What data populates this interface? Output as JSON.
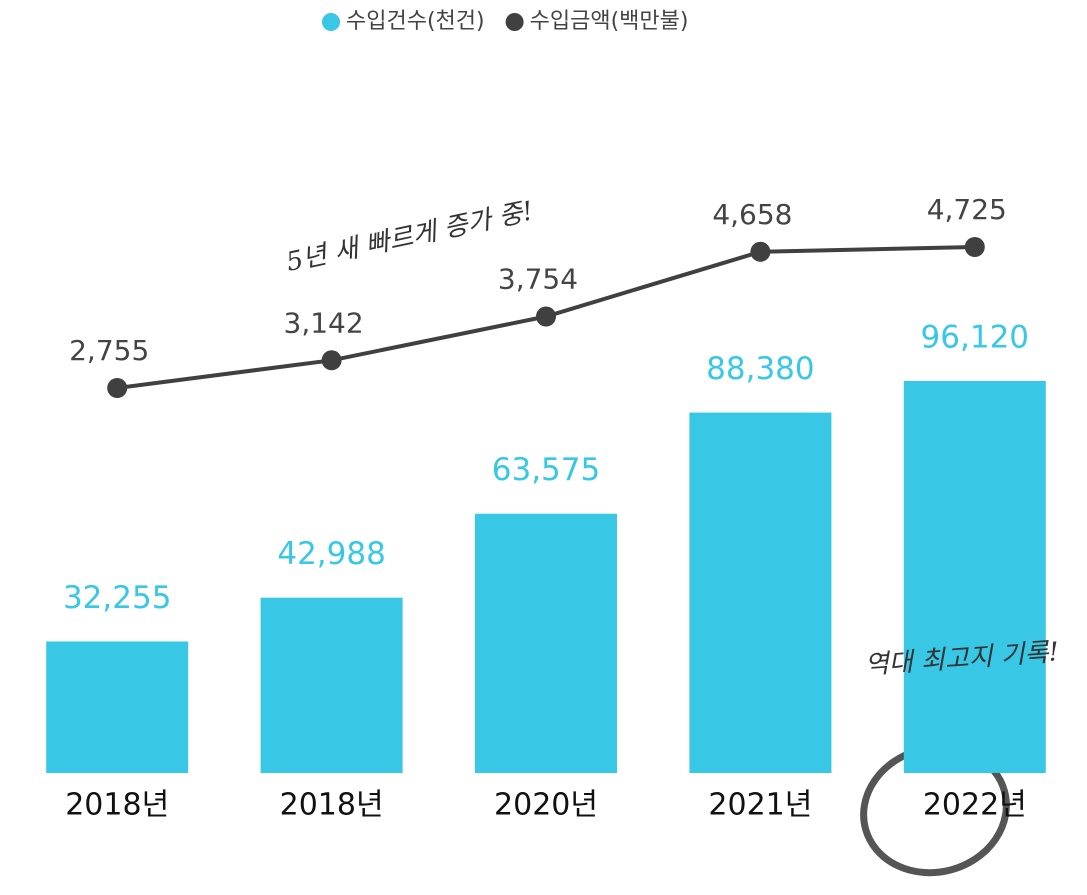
{
  "chart_data": {
    "type": "bar-line",
    "categories": [
      "2018년",
      "2018년",
      "2020년",
      "2021년",
      "2022년"
    ],
    "series": [
      {
        "name": "수입건수(천건)",
        "type": "bar",
        "color": "#38c8e6",
        "values": [
          32255,
          42988,
          63575,
          88380,
          96120
        ],
        "value_labels": [
          "32,255",
          "42,988",
          "63,575",
          "88,380",
          "96,120"
        ]
      },
      {
        "name": "수입금액(백만불)",
        "type": "line",
        "color": "#404040",
        "values": [
          2755,
          3142,
          3754,
          4658,
          4725
        ],
        "value_labels": [
          "2,755",
          "3,142",
          "3,754",
          "4,658",
          "4,725"
        ]
      }
    ],
    "annotations": [
      "5년 새 빠르게 증가 중!",
      "역대 최고지 기록!"
    ],
    "legend": "top"
  }
}
